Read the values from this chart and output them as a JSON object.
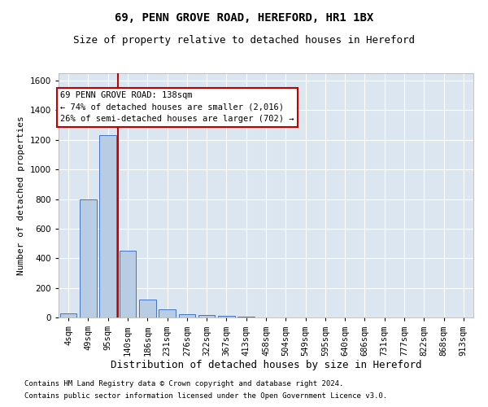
{
  "title1": "69, PENN GROVE ROAD, HEREFORD, HR1 1BX",
  "title2": "Size of property relative to detached houses in Hereford",
  "xlabel": "Distribution of detached houses by size in Hereford",
  "ylabel": "Number of detached properties",
  "bar_labels": [
    "4sqm",
    "49sqm",
    "95sqm",
    "140sqm",
    "186sqm",
    "231sqm",
    "276sqm",
    "322sqm",
    "367sqm",
    "413sqm",
    "458sqm",
    "504sqm",
    "549sqm",
    "595sqm",
    "640sqm",
    "686sqm",
    "731sqm",
    "777sqm",
    "822sqm",
    "868sqm",
    "913sqm"
  ],
  "bar_values": [
    25,
    800,
    1230,
    450,
    120,
    55,
    20,
    15,
    10,
    5,
    2,
    0,
    0,
    0,
    0,
    0,
    0,
    0,
    0,
    0,
    0
  ],
  "bar_color": "#b8cce4",
  "bar_edge_color": "#4472c4",
  "ylim": [
    0,
    1650
  ],
  "yticks": [
    0,
    200,
    400,
    600,
    800,
    1000,
    1200,
    1400,
    1600
  ],
  "vline_x": 2.5,
  "vline_color": "#c00000",
  "annotation_text": "69 PENN GROVE ROAD: 138sqm\n← 74% of detached houses are smaller (2,016)\n26% of semi-detached houses are larger (702) →",
  "annotation_box_color": "#ffffff",
  "annotation_box_edge_color": "#c00000",
  "footer1": "Contains HM Land Registry data © Crown copyright and database right 2024.",
  "footer2": "Contains public sector information licensed under the Open Government Licence v3.0.",
  "plot_bg": "#dce6f1",
  "title1_fontsize": 10,
  "title2_fontsize": 9,
  "xlabel_fontsize": 9,
  "ylabel_fontsize": 8,
  "tick_fontsize": 7.5,
  "annotation_fontsize": 7.5,
  "footer_fontsize": 6.5
}
